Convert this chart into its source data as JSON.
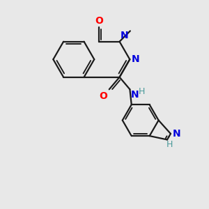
{
  "bg_color": "#e8e8e8",
  "bond_color": "#1a1a1a",
  "N_color": "#0000dd",
  "O_color": "#ff0000",
  "H_color": "#4a9a9a",
  "line_width": 1.6,
  "figsize": [
    3.0,
    3.0
  ],
  "dpi": 100,
  "xlim": [
    0,
    10
  ],
  "ylim": [
    0,
    10
  ]
}
